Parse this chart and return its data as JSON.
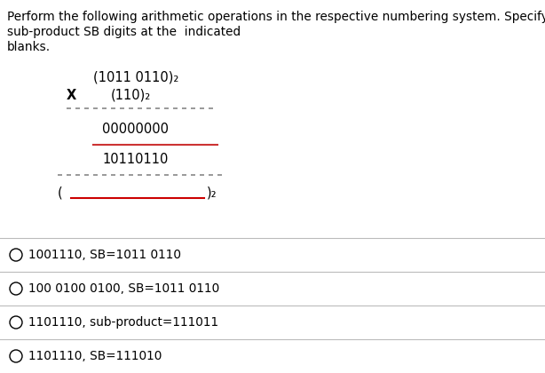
{
  "title_lines": [
    "Perform the following arithmetic operations in the respective numbering system. Specify the",
    "sub-product SB digits at the  indicated",
    "blanks."
  ],
  "calc_line1": "(1011 0110)₂",
  "calc_line2_prefix": "X",
  "calc_line2_suffix": "(110)₂",
  "calc_line3": "00000000",
  "calc_line4": "10110110",
  "calc_line5_prefix": "(",
  "calc_line5_blank_color": "#cc0000",
  "calc_line5_suffix": ")₂",
  "options": [
    "1001110, SB=1011 0110",
    "100 0100 0100, SB=1011 0110",
    "1101110, sub-product=111011",
    "1101110, SB=111010"
  ],
  "option_separator_color": "#bbbbbb",
  "text_color": "#000000",
  "bg_color": "#ffffff",
  "font_size_title": 9.8,
  "font_size_calc": 10.5,
  "font_size_options": 9.8,
  "dot_sep_color": "#888888",
  "solid_sep_color": "#cc3333"
}
